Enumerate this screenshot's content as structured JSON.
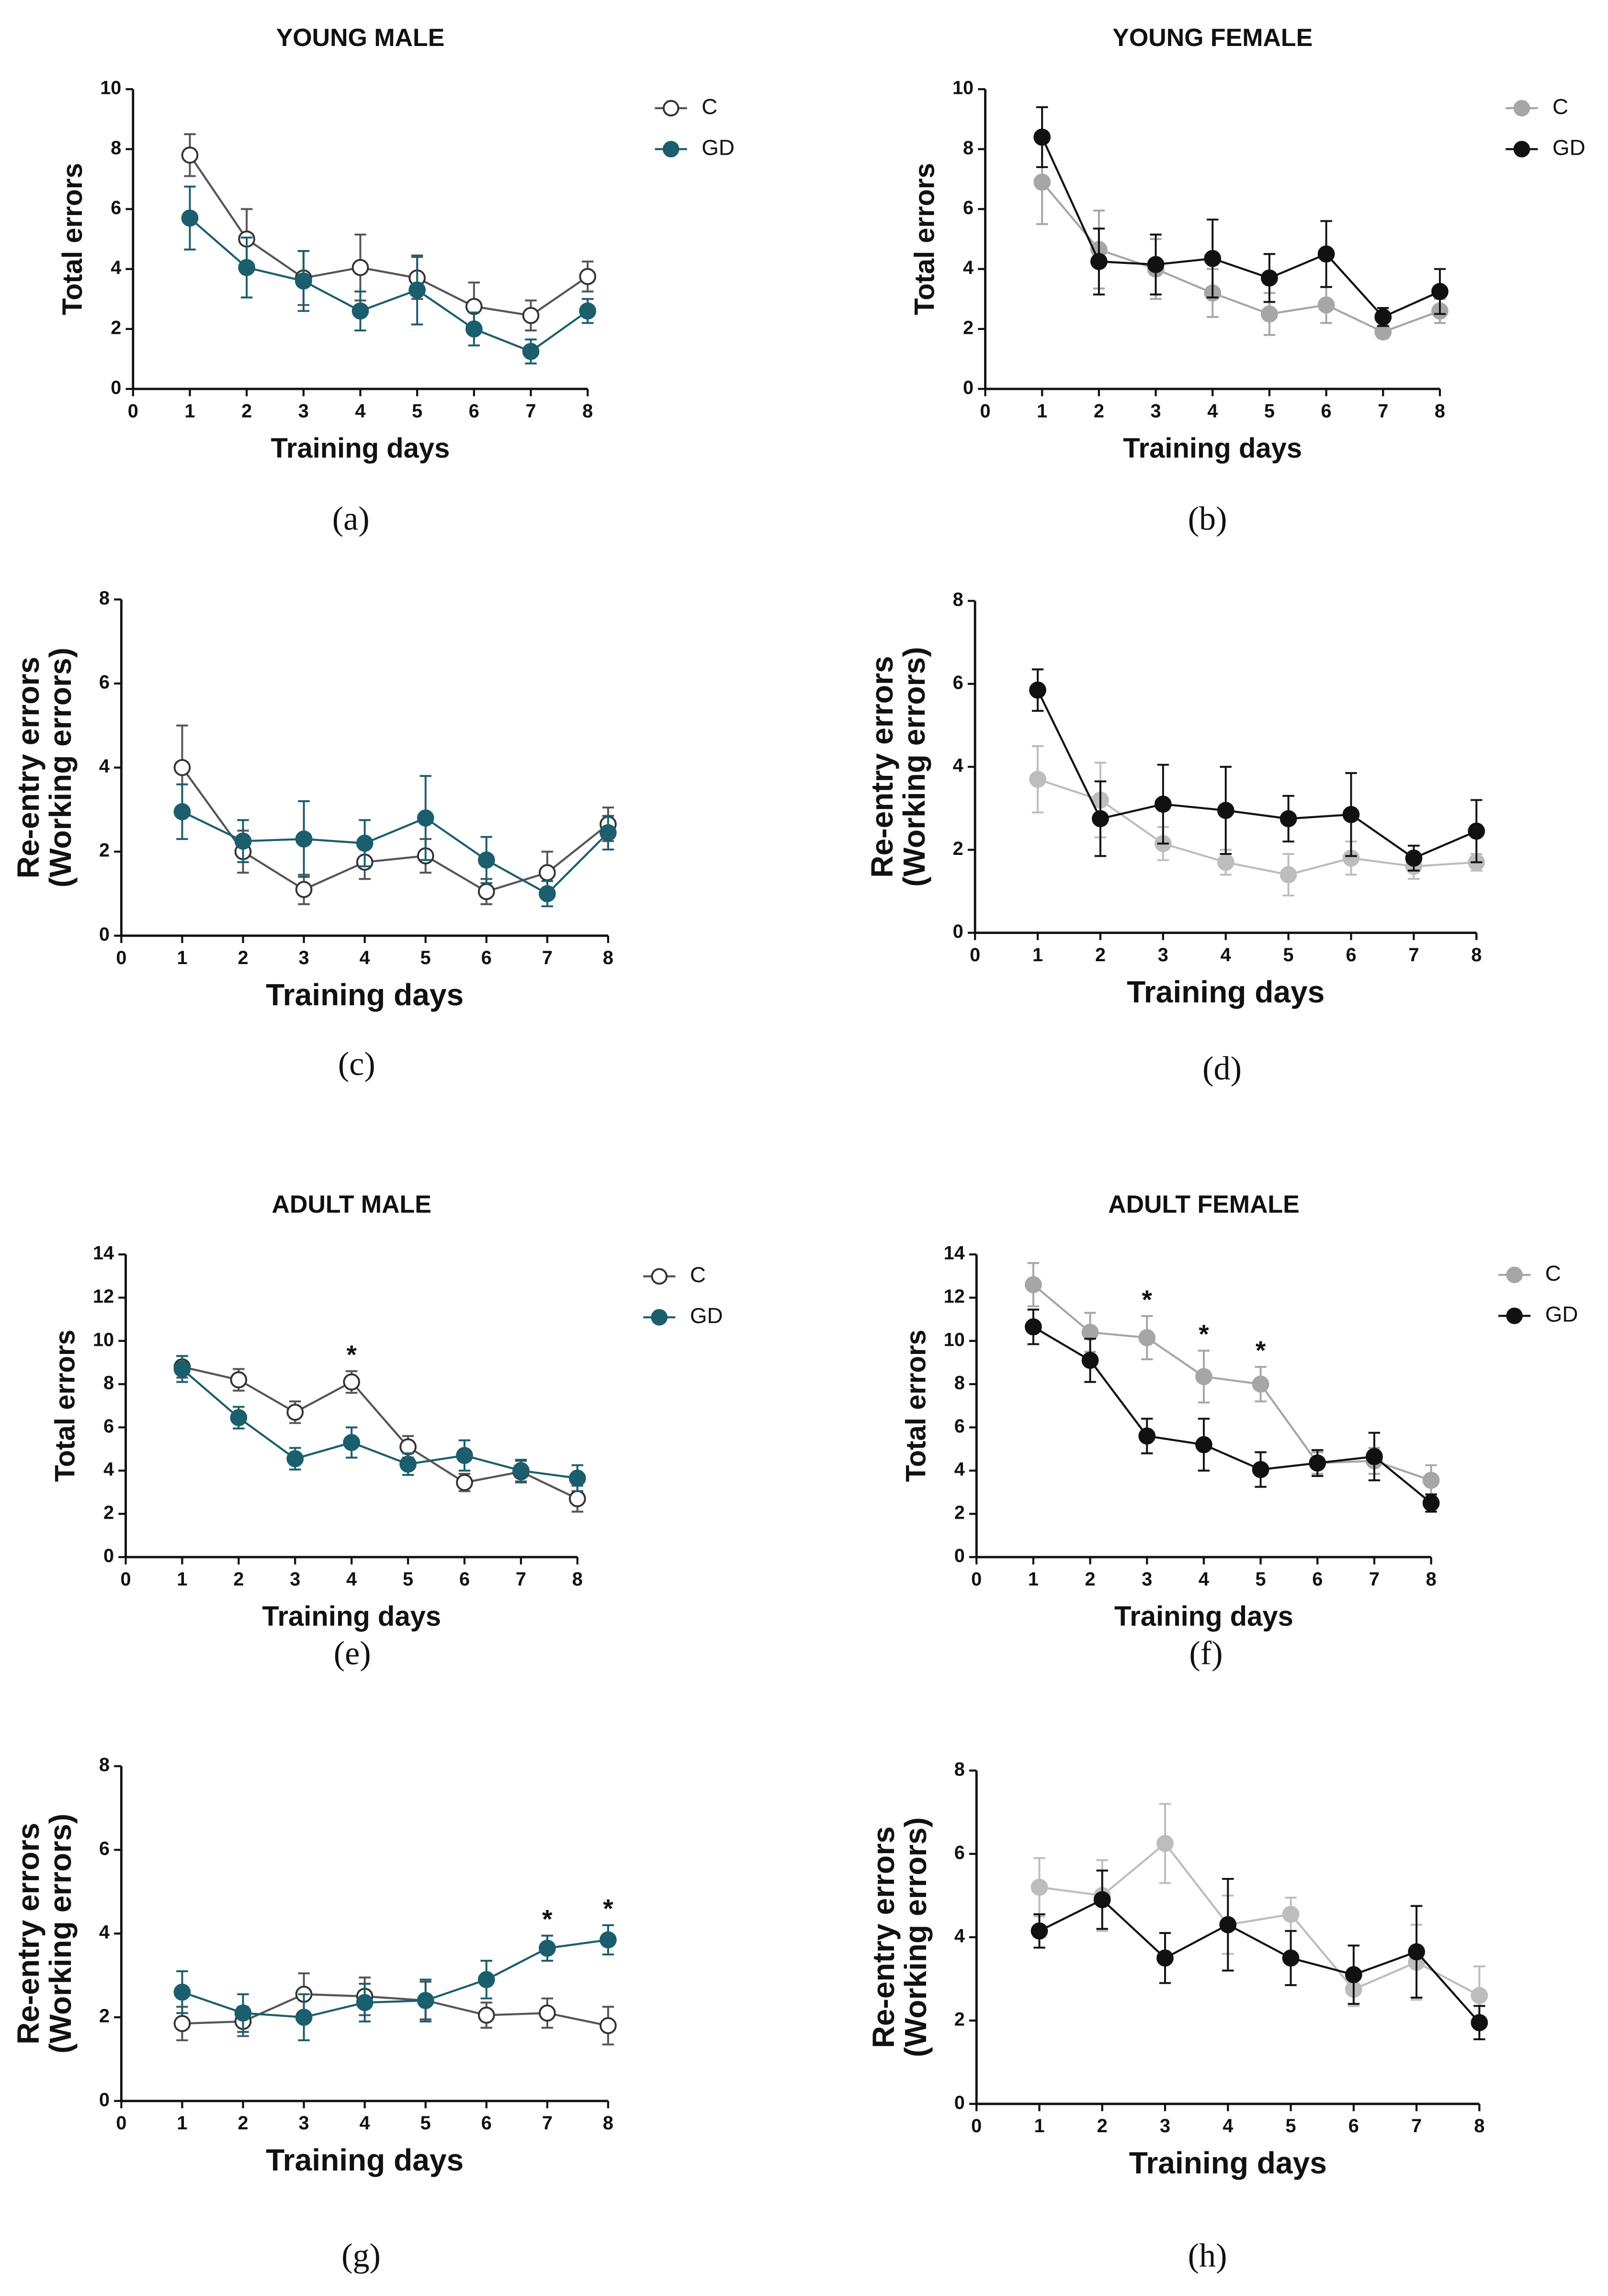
{
  "chart_data": [
    {
      "type": "line",
      "panel": "(a)",
      "title": "YOUNG MALE",
      "xlabel": "Training days",
      "ylabel": [
        "Total errors"
      ],
      "x": [
        1,
        2,
        3,
        4,
        5,
        6,
        7,
        8
      ],
      "xlim": [
        0,
        8
      ],
      "xticks": [
        0,
        1,
        2,
        3,
        4,
        5,
        6,
        7,
        8
      ],
      "ylim": [
        0,
        10
      ],
      "yticks": [
        0,
        2,
        4,
        6,
        8,
        10
      ],
      "legend": "outside right",
      "series": [
        {
          "name": "C",
          "color": "#555555",
          "marker_fill": "#ffffff",
          "values": [
            7.8,
            5.0,
            3.7,
            4.05,
            3.7,
            2.75,
            2.45,
            3.75
          ],
          "errors": [
            0.7,
            1.0,
            0.9,
            1.1,
            0.7,
            0.8,
            0.5,
            0.5
          ]
        },
        {
          "name": "GD",
          "color": "#1b5e6d",
          "marker_fill": "#1b5e6d",
          "values": [
            5.7,
            4.05,
            3.6,
            2.6,
            3.3,
            2.0,
            1.25,
            2.6
          ],
          "errors": [
            1.05,
            1.0,
            1.0,
            0.65,
            1.15,
            0.55,
            0.4,
            0.4
          ]
        }
      ]
    },
    {
      "type": "line",
      "panel": "(b)",
      "title": "YOUNG FEMALE",
      "xlabel": "Training days",
      "ylabel": [
        "Total errors"
      ],
      "x": [
        1,
        2,
        3,
        4,
        5,
        6,
        7,
        8
      ],
      "xlim": [
        0,
        8
      ],
      "xticks": [
        0,
        1,
        2,
        3,
        4,
        5,
        6,
        7,
        8
      ],
      "ylim": [
        0,
        10
      ],
      "yticks": [
        0,
        2,
        4,
        6,
        8,
        10
      ],
      "legend": "outside right",
      "series": [
        {
          "name": "C",
          "color": "#a6a6a6",
          "marker_fill": "#a6a6a6",
          "values": [
            6.9,
            4.65,
            4.0,
            3.2,
            2.5,
            2.8,
            1.9,
            2.6
          ],
          "errors": [
            1.4,
            1.3,
            1.0,
            0.8,
            0.7,
            0.6,
            0.2,
            0.4
          ]
        },
        {
          "name": "GD",
          "color": "#111111",
          "marker_fill": "#111111",
          "values": [
            8.4,
            4.25,
            4.15,
            4.35,
            3.7,
            4.5,
            2.4,
            3.25
          ],
          "errors": [
            1.0,
            1.1,
            1.0,
            1.3,
            0.8,
            1.1,
            0.3,
            0.75
          ]
        }
      ]
    },
    {
      "type": "line",
      "panel": "(c)",
      "xlabel": "Training days",
      "ylabel": [
        "Re-entry errors",
        "(Working errors)"
      ],
      "x": [
        1,
        2,
        3,
        4,
        5,
        6,
        7,
        8
      ],
      "xlim": [
        0,
        8
      ],
      "xticks": [
        0,
        1,
        2,
        3,
        4,
        5,
        6,
        7,
        8
      ],
      "ylim": [
        0,
        8
      ],
      "yticks": [
        0,
        2,
        4,
        6,
        8
      ],
      "series": [
        {
          "name": "C",
          "color": "#555555",
          "marker_fill": "#ffffff",
          "values": [
            4.0,
            2.0,
            1.1,
            1.75,
            1.9,
            1.05,
            1.5,
            2.65
          ],
          "errors": [
            1.0,
            0.5,
            0.35,
            0.4,
            0.4,
            0.3,
            0.5,
            0.4
          ]
        },
        {
          "name": "GD",
          "color": "#1b5e6d",
          "marker_fill": "#1b5e6d",
          "values": [
            2.95,
            2.25,
            2.3,
            2.2,
            2.8,
            1.8,
            1.0,
            2.45
          ],
          "errors": [
            0.65,
            0.5,
            0.9,
            0.55,
            1.0,
            0.55,
            0.3,
            0.4
          ]
        }
      ]
    },
    {
      "type": "line",
      "panel": "(d)",
      "xlabel": "Training days",
      "ylabel": [
        "Re-entry errors",
        "(Working errors)"
      ],
      "x": [
        1,
        2,
        3,
        4,
        5,
        6,
        7,
        8
      ],
      "xlim": [
        0,
        8
      ],
      "xticks": [
        0,
        1,
        2,
        3,
        4,
        5,
        6,
        7,
        8
      ],
      "ylim": [
        0,
        8
      ],
      "yticks": [
        0,
        2,
        4,
        6,
        8
      ],
      "series": [
        {
          "name": "C",
          "color": "#bdbdbd",
          "marker_fill": "#bdbdbd",
          "values": [
            3.7,
            3.2,
            2.15,
            1.7,
            1.4,
            1.8,
            1.6,
            1.7
          ],
          "errors": [
            0.8,
            0.9,
            0.4,
            0.3,
            0.5,
            0.4,
            0.3,
            0.2
          ]
        },
        {
          "name": "GD",
          "color": "#111111",
          "marker_fill": "#111111",
          "values": [
            5.85,
            2.75,
            3.1,
            2.95,
            2.75,
            2.85,
            1.8,
            2.45
          ],
          "errors": [
            0.5,
            0.9,
            0.95,
            1.05,
            0.55,
            1.0,
            0.3,
            0.75
          ]
        }
      ]
    },
    {
      "type": "line",
      "panel": "(e)",
      "title": "ADULT MALE",
      "xlabel": "Training days",
      "ylabel": [
        "Total errors"
      ],
      "x": [
        1,
        2,
        3,
        4,
        5,
        6,
        7,
        8
      ],
      "xlim": [
        0,
        8
      ],
      "xticks": [
        0,
        1,
        2,
        3,
        4,
        5,
        6,
        7,
        8
      ],
      "ylim": [
        0,
        14
      ],
      "yticks": [
        0,
        2,
        4,
        6,
        8,
        10,
        12,
        14
      ],
      "legend": "outside right",
      "series": [
        {
          "name": "C",
          "color": "#555555",
          "marker_fill": "#ffffff",
          "values": [
            8.8,
            8.2,
            6.7,
            8.1,
            5.1,
            3.45,
            3.95,
            2.7
          ],
          "errors": [
            0.5,
            0.5,
            0.5,
            0.5,
            0.5,
            0.4,
            0.5,
            0.6
          ]
        },
        {
          "name": "GD",
          "color": "#1b5e6d",
          "marker_fill": "#1b5e6d",
          "values": [
            8.7,
            6.45,
            4.55,
            5.3,
            4.3,
            4.7,
            4.0,
            3.65
          ],
          "errors": [
            0.6,
            0.5,
            0.5,
            0.7,
            0.5,
            0.7,
            0.5,
            0.6
          ]
        }
      ],
      "annotations": [
        {
          "text": "*",
          "x": 4
        }
      ]
    },
    {
      "type": "line",
      "panel": "(f)",
      "title": "ADULT FEMALE",
      "xlabel": "Training days",
      "ylabel": [
        "Total errors"
      ],
      "x": [
        1,
        2,
        3,
        4,
        5,
        6,
        7,
        8
      ],
      "xlim": [
        0,
        8
      ],
      "xticks": [
        0,
        1,
        2,
        3,
        4,
        5,
        6,
        7,
        8
      ],
      "ylim": [
        0,
        14
      ],
      "yticks": [
        0,
        2,
        4,
        6,
        8,
        10,
        12,
        14
      ],
      "legend": "outside right",
      "series": [
        {
          "name": "C",
          "color": "#a6a6a6",
          "marker_fill": "#a6a6a6",
          "values": [
            12.6,
            10.4,
            10.15,
            8.35,
            8.0,
            4.35,
            4.45,
            3.55
          ],
          "errors": [
            1.0,
            0.9,
            1.0,
            1.2,
            0.8,
            0.5,
            0.6,
            0.7
          ]
        },
        {
          "name": "GD",
          "color": "#111111",
          "marker_fill": "#111111",
          "values": [
            10.65,
            9.1,
            5.6,
            5.2,
            4.05,
            4.35,
            4.65,
            2.5
          ],
          "errors": [
            0.8,
            1.0,
            0.8,
            1.2,
            0.8,
            0.6,
            1.1,
            0.4
          ]
        }
      ],
      "annotations": [
        {
          "text": "*",
          "x": 3
        },
        {
          "text": "*",
          "x": 4
        },
        {
          "text": "*",
          "x": 5
        }
      ]
    },
    {
      "type": "line",
      "panel": "(g)",
      "xlabel": "Training days",
      "ylabel": [
        "Re-entry errors",
        "(Working errors)"
      ],
      "x": [
        1,
        2,
        3,
        4,
        5,
        6,
        7,
        8
      ],
      "xlim": [
        0,
        8
      ],
      "xticks": [
        0,
        1,
        2,
        3,
        4,
        5,
        6,
        7,
        8
      ],
      "ylim": [
        0,
        8
      ],
      "yticks": [
        0,
        2,
        4,
        6,
        8
      ],
      "series": [
        {
          "name": "C",
          "color": "#555555",
          "marker_fill": "#ffffff",
          "values": [
            1.85,
            1.9,
            2.55,
            2.5,
            2.4,
            2.05,
            2.1,
            1.8
          ],
          "errors": [
            0.4,
            0.35,
            0.5,
            0.45,
            0.45,
            0.3,
            0.35,
            0.45
          ]
        },
        {
          "name": "GD",
          "color": "#1b5e6d",
          "marker_fill": "#1b5e6d",
          "values": [
            2.6,
            2.1,
            2.0,
            2.35,
            2.4,
            2.9,
            3.65,
            3.85
          ],
          "errors": [
            0.5,
            0.45,
            0.55,
            0.45,
            0.5,
            0.45,
            0.3,
            0.35
          ]
        }
      ],
      "annotations": [
        {
          "text": "*",
          "x": 7
        },
        {
          "text": "*",
          "x": 8
        }
      ]
    },
    {
      "type": "line",
      "panel": "(h)",
      "xlabel": "Training days",
      "ylabel": [
        "Re-entry errors",
        "(Working errors)"
      ],
      "x": [
        1,
        2,
        3,
        4,
        5,
        6,
        7,
        8
      ],
      "xlim": [
        0,
        8
      ],
      "xticks": [
        0,
        1,
        2,
        3,
        4,
        5,
        6,
        7,
        8
      ],
      "ylim": [
        0,
        8
      ],
      "yticks": [
        0,
        2,
        4,
        6,
        8
      ],
      "series": [
        {
          "name": "C",
          "color": "#bdbdbd",
          "marker_fill": "#bdbdbd",
          "values": [
            5.2,
            5.0,
            6.25,
            4.3,
            4.55,
            2.75,
            3.4,
            2.6
          ],
          "errors": [
            0.7,
            0.85,
            0.95,
            0.7,
            0.4,
            0.4,
            0.9,
            0.7
          ]
        },
        {
          "name": "GD",
          "color": "#111111",
          "marker_fill": "#111111",
          "values": [
            4.15,
            4.9,
            3.5,
            4.3,
            3.5,
            3.1,
            3.65,
            1.95
          ],
          "errors": [
            0.4,
            0.7,
            0.6,
            1.1,
            0.65,
            0.7,
            1.1,
            0.4
          ]
        }
      ]
    }
  ]
}
